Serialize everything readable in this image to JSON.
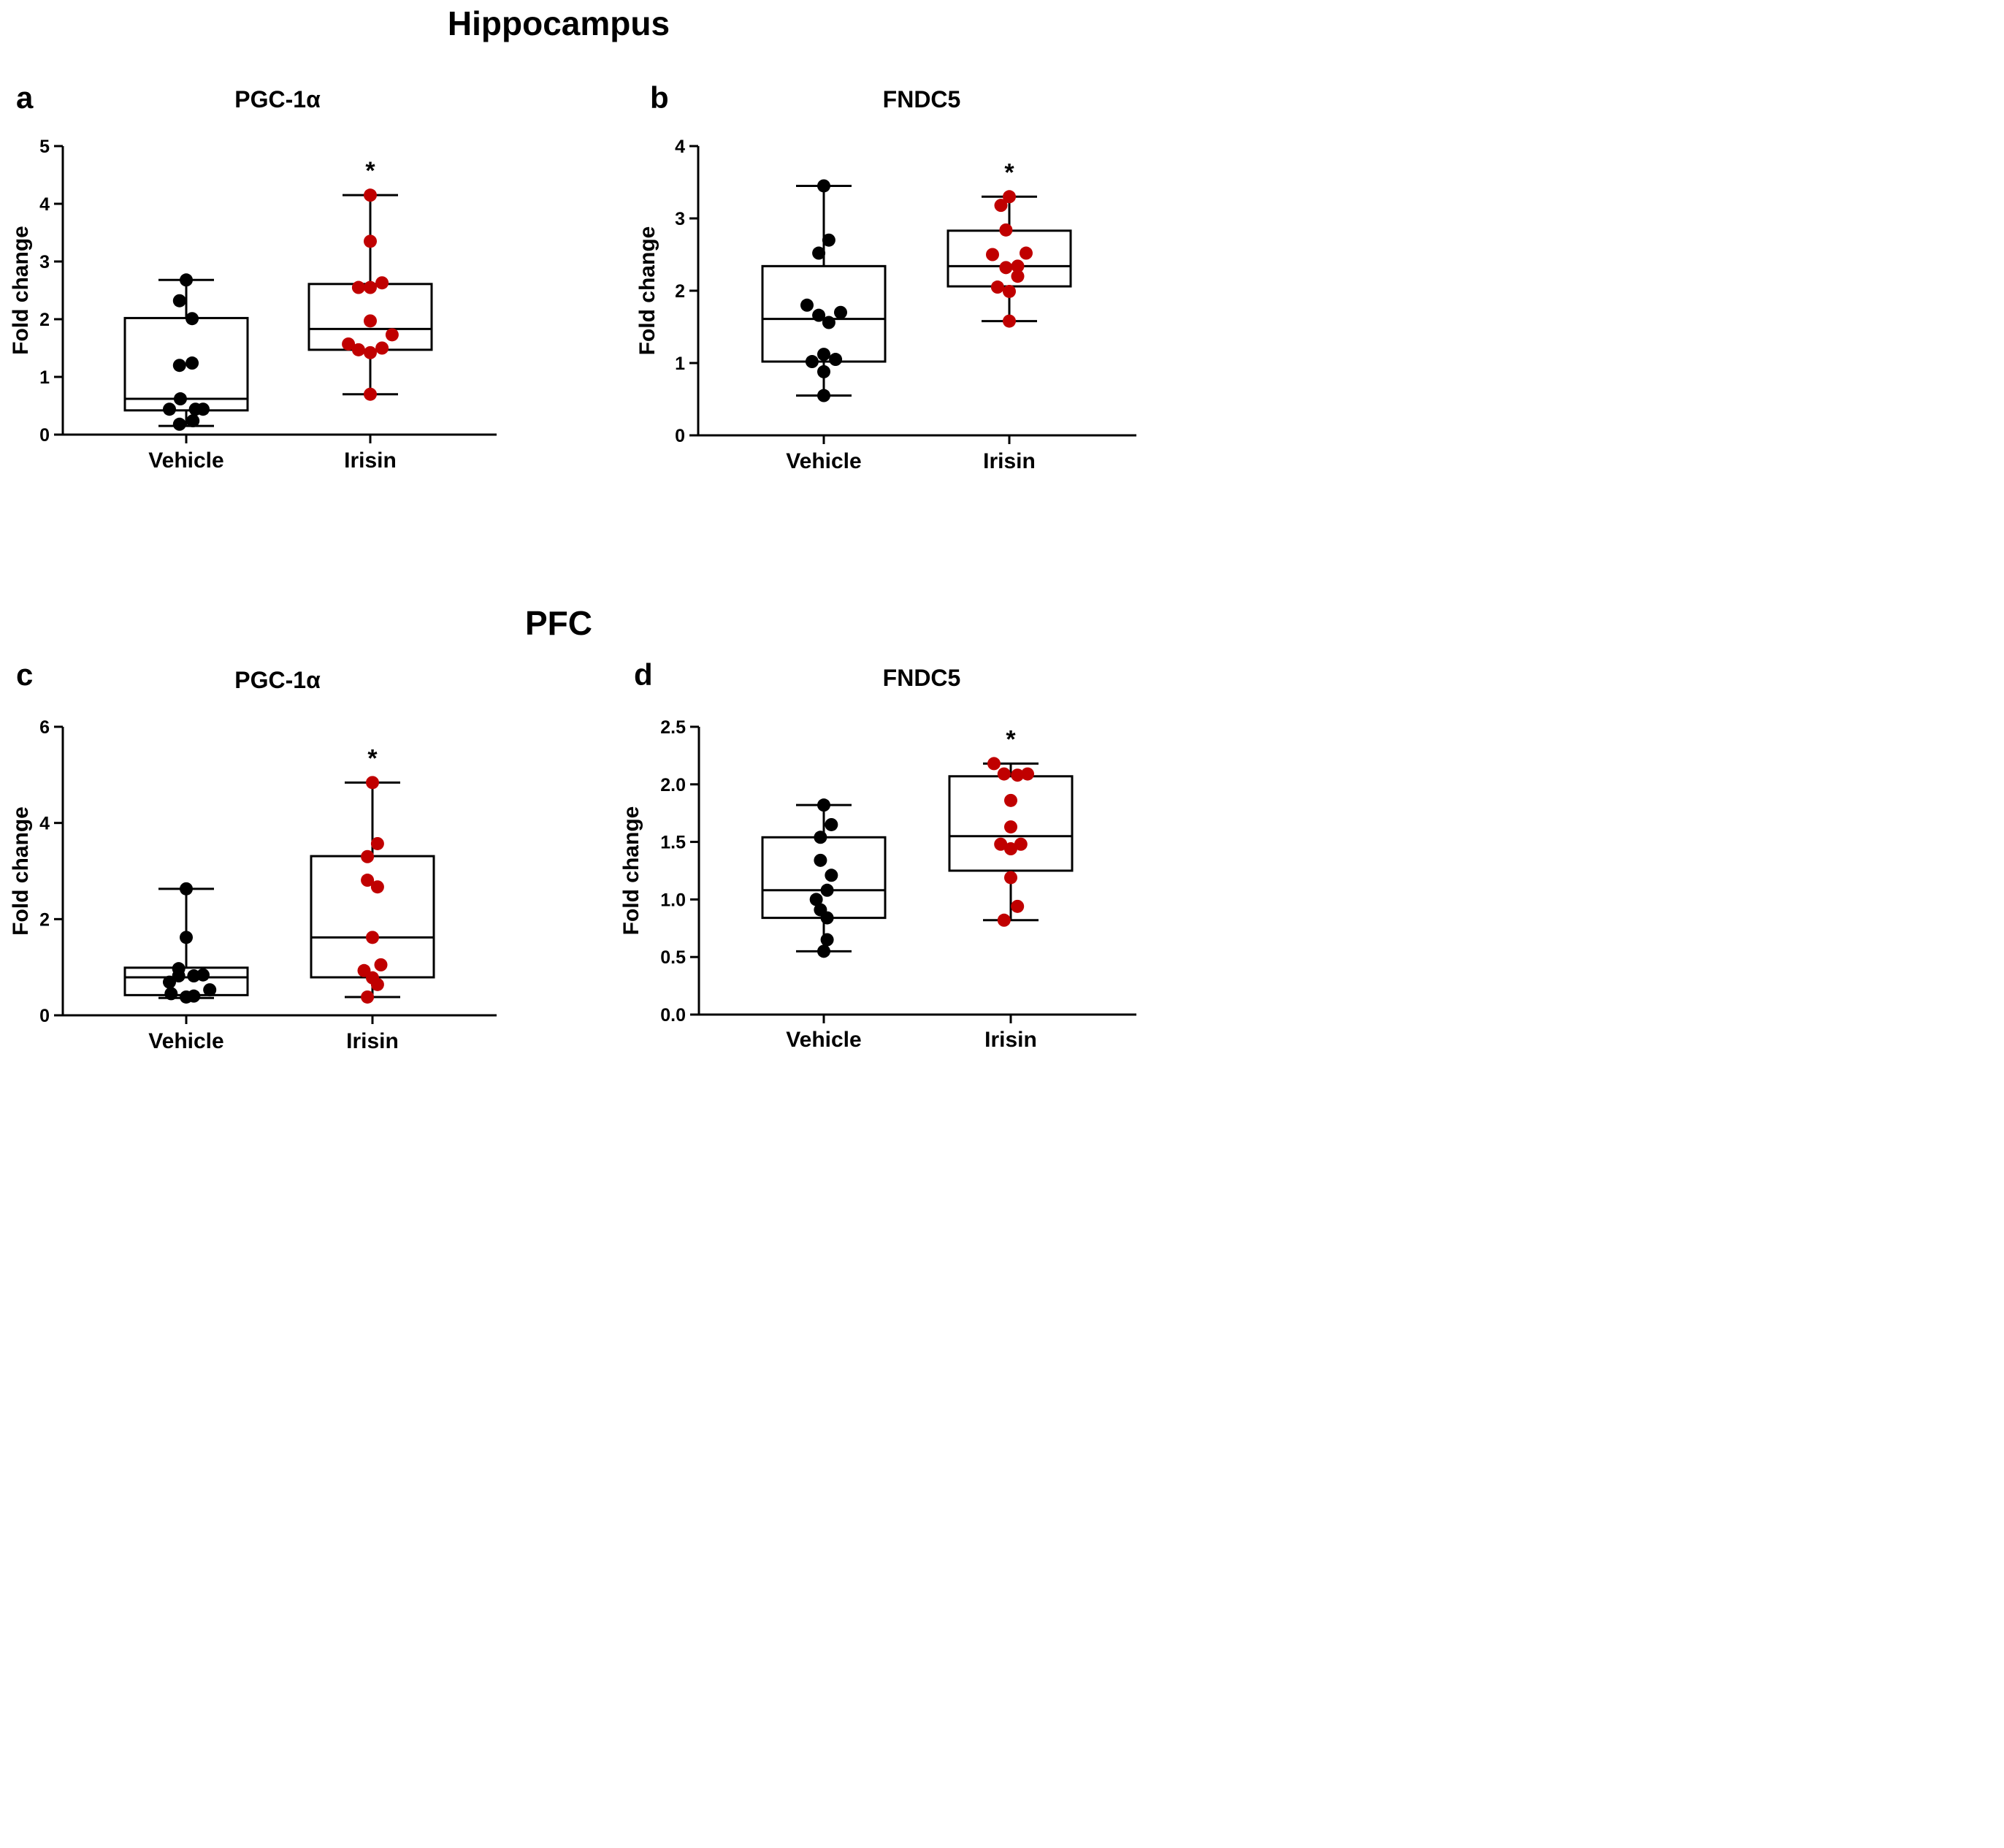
{
  "figure": {
    "section_top": "Hippocampus",
    "section_bottom": "PFC"
  },
  "chart_data": [
    {
      "letter": "a",
      "type": "box",
      "title": "PGC-1α",
      "ylabel": "Fold change",
      "ylim": [
        0,
        5
      ],
      "yticks": [
        "0",
        "1",
        "2",
        "3",
        "4",
        "5"
      ],
      "categories": [
        "Vehicle",
        "Irisin"
      ],
      "significance": "*",
      "boxes": [
        {
          "group": "Vehicle",
          "color": "#000000",
          "min": 0.15,
          "q1": 0.42,
          "median": 0.62,
          "q3": 2.02,
          "max": 2.68,
          "points": [
            [
              0,
              2.68
            ],
            [
              -0.08,
              2.32
            ],
            [
              0.07,
              2.01
            ],
            [
              -0.08,
              1.2
            ],
            [
              0.07,
              1.24
            ],
            [
              -0.07,
              0.62
            ],
            [
              -0.2,
              0.44
            ],
            [
              0.2,
              0.44
            ],
            [
              0.11,
              0.44
            ],
            [
              0.08,
              0.24
            ],
            [
              -0.08,
              0.18
            ]
          ]
        },
        {
          "group": "Irisin",
          "color": "#c00000",
          "min": 0.7,
          "q1": 1.47,
          "median": 1.83,
          "q3": 2.61,
          "max": 4.15,
          "points": [
            [
              0,
              4.15
            ],
            [
              0,
              3.35
            ],
            [
              -0.14,
              2.55
            ],
            [
              0,
              2.55
            ],
            [
              0.14,
              2.63
            ],
            [
              0,
              1.97
            ],
            [
              -0.26,
              1.57
            ],
            [
              0.26,
              1.73
            ],
            [
              -0.14,
              1.47
            ],
            [
              0,
              1.42
            ],
            [
              0.14,
              1.5
            ],
            [
              0,
              0.7
            ]
          ]
        }
      ]
    },
    {
      "letter": "b",
      "type": "box",
      "title": "FNDC5",
      "ylabel": "Fold change",
      "ylim": [
        0,
        4
      ],
      "yticks": [
        "0",
        "1",
        "2",
        "3",
        "4"
      ],
      "categories": [
        "Vehicle",
        "Irisin"
      ],
      "significance": "*",
      "boxes": [
        {
          "group": "Vehicle",
          "color": "#000000",
          "min": 0.55,
          "q1": 1.02,
          "median": 1.61,
          "q3": 2.34,
          "max": 3.45,
          "points": [
            [
              0,
              3.45
            ],
            [
              0.06,
              2.7
            ],
            [
              -0.06,
              2.52
            ],
            [
              -0.2,
              1.8
            ],
            [
              -0.06,
              1.66
            ],
            [
              0.06,
              1.56
            ],
            [
              0.2,
              1.7
            ],
            [
              0,
              1.12
            ],
            [
              -0.14,
              1.02
            ],
            [
              0.14,
              1.05
            ],
            [
              0,
              0.88
            ],
            [
              0,
              0.55
            ]
          ]
        },
        {
          "group": "Irisin",
          "color": "#c00000",
          "min": 1.58,
          "q1": 2.06,
          "median": 2.34,
          "q3": 2.83,
          "max": 3.3,
          "points": [
            [
              0,
              3.3
            ],
            [
              -0.1,
              3.18
            ],
            [
              -0.04,
              2.84
            ],
            [
              -0.2,
              2.5
            ],
            [
              0.2,
              2.52
            ],
            [
              -0.04,
              2.32
            ],
            [
              0.1,
              2.34
            ],
            [
              0.1,
              2.2
            ],
            [
              -0.14,
              2.05
            ],
            [
              0,
              1.99
            ],
            [
              0,
              1.58
            ]
          ]
        }
      ]
    },
    {
      "letter": "c",
      "type": "box",
      "title": "PGC-1α",
      "ylabel": "Fold change",
      "ylim": [
        0,
        6
      ],
      "yticks": [
        "0",
        "2",
        "4",
        "6"
      ],
      "categories": [
        "Vehicle",
        "Irisin"
      ],
      "significance": "*",
      "boxes": [
        {
          "group": "Vehicle",
          "color": "#000000",
          "min": 0.36,
          "q1": 0.42,
          "median": 0.79,
          "q3": 0.99,
          "max": 2.63,
          "points": [
            [
              0,
              2.63
            ],
            [
              0,
              1.62
            ],
            [
              -0.2,
              0.69
            ],
            [
              -0.09,
              0.97
            ],
            [
              -0.09,
              0.82
            ],
            [
              0.09,
              0.82
            ],
            [
              0.2,
              0.84
            ],
            [
              0.28,
              0.53
            ],
            [
              -0.18,
              0.45
            ],
            [
              0,
              0.38
            ],
            [
              0.09,
              0.4
            ]
          ]
        },
        {
          "group": "Irisin",
          "color": "#c00000",
          "min": 0.38,
          "q1": 0.79,
          "median": 1.62,
          "q3": 3.31,
          "max": 4.84,
          "points": [
            [
              0,
              4.84
            ],
            [
              0.06,
              3.57
            ],
            [
              -0.06,
              3.3
            ],
            [
              -0.06,
              2.81
            ],
            [
              0.06,
              2.67
            ],
            [
              0,
              1.62
            ],
            [
              0.1,
              1.05
            ],
            [
              -0.1,
              0.93
            ],
            [
              0,
              0.78
            ],
            [
              0.06,
              0.64
            ],
            [
              -0.06,
              0.38
            ]
          ]
        }
      ]
    },
    {
      "letter": "d",
      "type": "box",
      "title": "FNDC5",
      "ylabel": "Fold change",
      "ylim": [
        0,
        2.5
      ],
      "yticks": [
        "0.0",
        "0.5",
        "1.0",
        "1.5",
        "2.0",
        "2.5"
      ],
      "categories": [
        "Vehicle",
        "Irisin"
      ],
      "significance": "*",
      "boxes": [
        {
          "group": "Vehicle",
          "color": "#000000",
          "min": 0.55,
          "q1": 0.84,
          "median": 1.08,
          "q3": 1.54,
          "max": 1.82,
          "points": [
            [
              0,
              1.82
            ],
            [
              0.09,
              1.65
            ],
            [
              -0.04,
              1.54
            ],
            [
              -0.04,
              1.34
            ],
            [
              0.09,
              1.21
            ],
            [
              0.04,
              1.08
            ],
            [
              -0.09,
              1.0
            ],
            [
              -0.04,
              0.91
            ],
            [
              0.04,
              0.84
            ],
            [
              0.04,
              0.65
            ],
            [
              0,
              0.55
            ]
          ]
        },
        {
          "group": "Irisin",
          "color": "#c00000",
          "min": 0.82,
          "q1": 1.25,
          "median": 1.55,
          "q3": 2.07,
          "max": 2.18,
          "points": [
            [
              -0.2,
              2.18
            ],
            [
              -0.08,
              2.09
            ],
            [
              0.08,
              2.08
            ],
            [
              0.2,
              2.09
            ],
            [
              0,
              1.86
            ],
            [
              0,
              1.63
            ],
            [
              -0.12,
              1.48
            ],
            [
              0,
              1.44
            ],
            [
              0.12,
              1.48
            ],
            [
              0,
              1.19
            ],
            [
              0.08,
              0.94
            ],
            [
              -0.08,
              0.82
            ]
          ]
        }
      ]
    }
  ]
}
